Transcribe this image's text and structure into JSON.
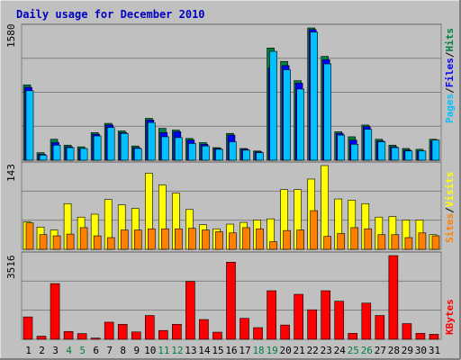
{
  "title": "Daily usage for December 2010",
  "colors": {
    "background": "#c0c0c0",
    "title": "#0000c0",
    "hits": "#008040",
    "files": "#0000ff",
    "pages": "#00c0ff",
    "visits": "#ffff00",
    "sites": "#ff8000",
    "kbytes": "#ff0000",
    "weekend_day": "#008040",
    "weekday": "#000000"
  },
  "chart_data": [
    {
      "type": "bar",
      "name": "hits-files-pages",
      "max_label": "1580",
      "ylim": [
        0,
        1580
      ],
      "legend": [
        "Pages",
        "Files",
        "Hits"
      ],
      "categories": [
        "1",
        "2",
        "3",
        "4",
        "5",
        "6",
        "7",
        "8",
        "9",
        "10",
        "11",
        "12",
        "13",
        "14",
        "15",
        "16",
        "17",
        "18",
        "19",
        "20",
        "21",
        "22",
        "23",
        "24",
        "25",
        "26",
        "27",
        "28",
        "29",
        "30",
        "31"
      ],
      "series": [
        {
          "name": "Hits",
          "values": [
            900,
            90,
            250,
            180,
            160,
            330,
            440,
            350,
            170,
            500,
            380,
            360,
            260,
            210,
            150,
            320,
            140,
            110,
            1340,
            1180,
            950,
            1580,
            1240,
            340,
            280,
            420,
            250,
            180,
            140,
            130,
            250
          ]
        },
        {
          "name": "Files",
          "values": [
            870,
            70,
            210,
            160,
            140,
            310,
            420,
            330,
            150,
            480,
            330,
            340,
            240,
            190,
            140,
            300,
            130,
            100,
            1100,
            1130,
            920,
            1560,
            1200,
            320,
            240,
            400,
            230,
            160,
            120,
            110,
            230
          ]
        },
        {
          "name": "Pages",
          "values": [
            830,
            60,
            180,
            150,
            140,
            290,
            390,
            320,
            140,
            450,
            280,
            270,
            200,
            170,
            130,
            220,
            120,
            90,
            1300,
            1080,
            850,
            1530,
            1150,
            300,
            190,
            370,
            220,
            150,
            110,
            110,
            240
          ]
        }
      ]
    },
    {
      "type": "bar",
      "name": "visits-sites",
      "max_label": "143",
      "ylim": [
        0,
        143
      ],
      "legend": [
        "Sites",
        "Visits"
      ],
      "categories": [
        "1",
        "2",
        "3",
        "4",
        "5",
        "6",
        "7",
        "8",
        "9",
        "10",
        "11",
        "12",
        "13",
        "14",
        "15",
        "16",
        "17",
        "18",
        "19",
        "20",
        "21",
        "22",
        "23",
        "24",
        "25",
        "26",
        "27",
        "28",
        "29",
        "30",
        "31"
      ],
      "series": [
        {
          "name": "Visits",
          "values": [
            47,
            38,
            33,
            78,
            55,
            60,
            85,
            76,
            70,
            130,
            110,
            96,
            68,
            42,
            35,
            43,
            46,
            50,
            52,
            102,
            102,
            120,
            143,
            86,
            84,
            78,
            55,
            56,
            50,
            50,
            25
          ]
        },
        {
          "name": "Sites",
          "values": [
            45,
            25,
            23,
            26,
            37,
            23,
            20,
            33,
            33,
            35,
            35,
            35,
            36,
            33,
            30,
            28,
            37,
            35,
            13,
            32,
            33,
            66,
            22,
            27,
            37,
            35,
            25,
            25,
            20,
            28,
            23
          ]
        }
      ]
    },
    {
      "type": "bar",
      "name": "kbytes",
      "max_label": "3516",
      "ylim": [
        0,
        3516
      ],
      "legend": [
        "KBytes"
      ],
      "categories": [
        "1",
        "2",
        "3",
        "4",
        "5",
        "6",
        "7",
        "8",
        "9",
        "10",
        "11",
        "12",
        "13",
        "14",
        "15",
        "16",
        "17",
        "18",
        "19",
        "20",
        "21",
        "22",
        "23",
        "24",
        "25",
        "26",
        "27",
        "28",
        "29",
        "30",
        "31"
      ],
      "series": [
        {
          "name": "KBytes",
          "values": [
            940,
            130,
            2340,
            330,
            240,
            50,
            720,
            630,
            310,
            1000,
            370,
            630,
            2430,
            830,
            300,
            3240,
            880,
            490,
            2040,
            600,
            1890,
            1240,
            2040,
            1600,
            250,
            1520,
            1000,
            3516,
            660,
            250,
            210
          ]
        }
      ]
    }
  ],
  "x_weekend_days": [
    "4",
    "5",
    "11",
    "12",
    "18",
    "19",
    "25",
    "26"
  ]
}
